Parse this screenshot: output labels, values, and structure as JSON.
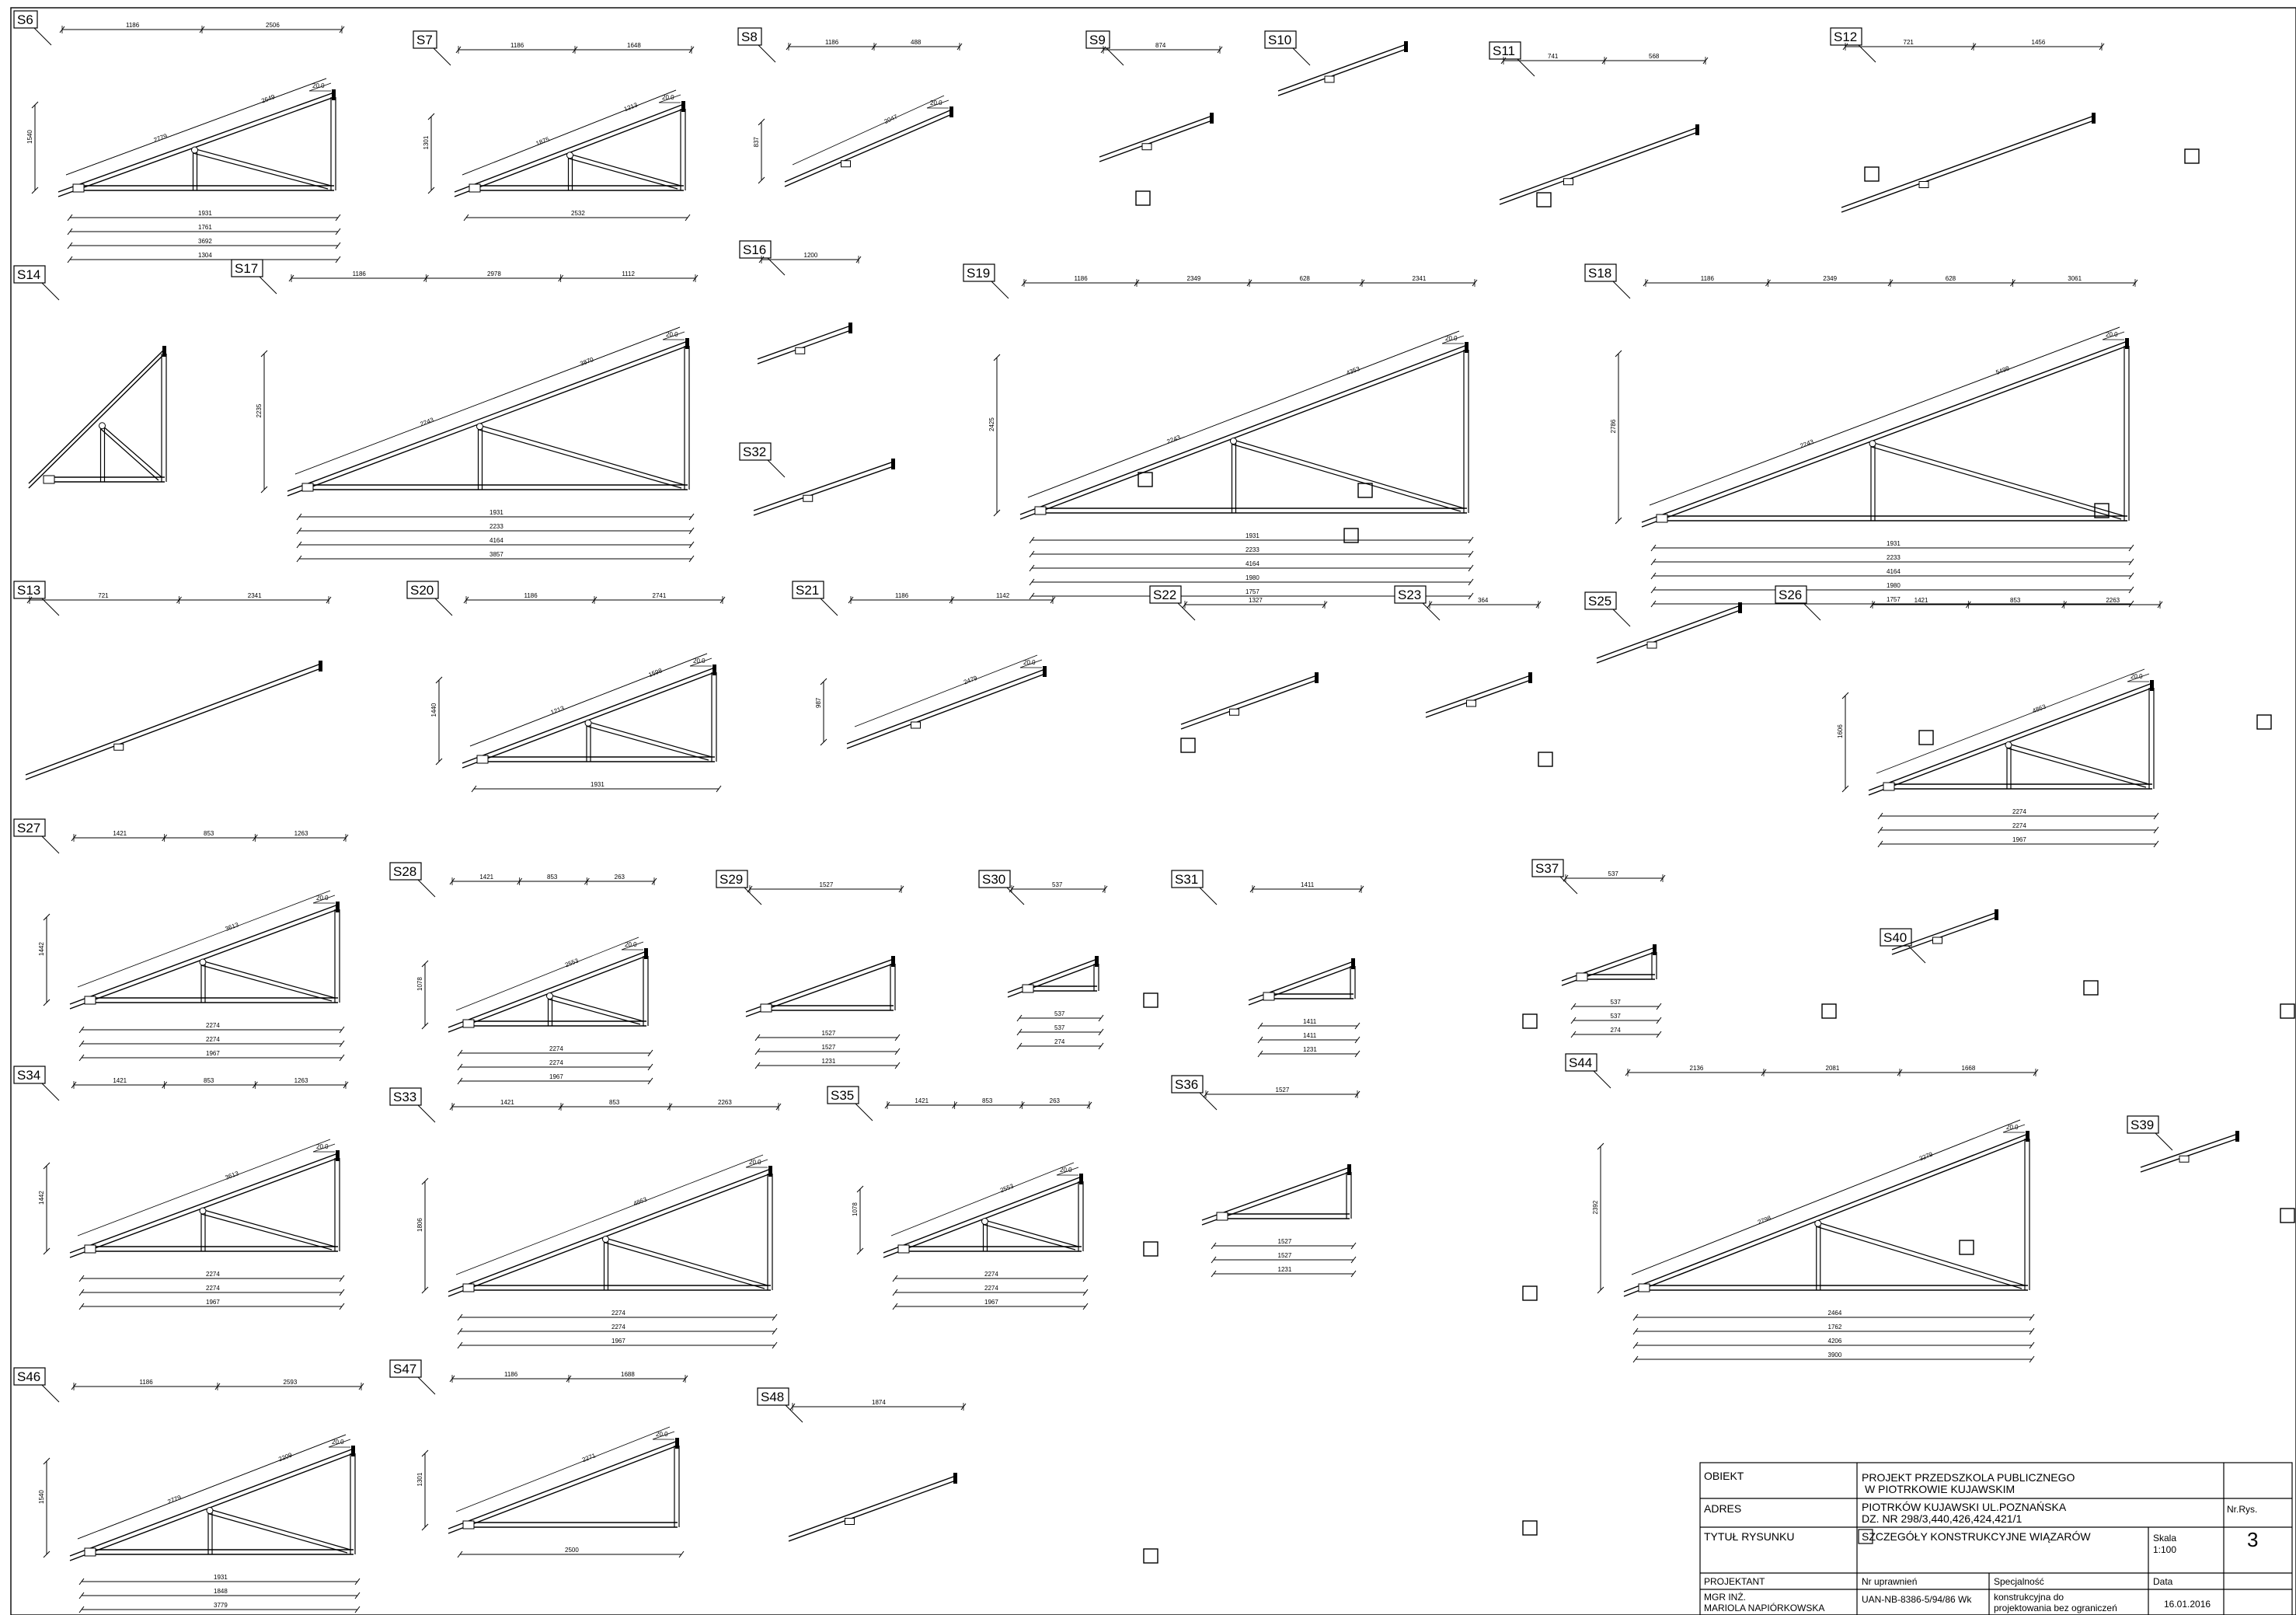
{
  "trusses": [
    {
      "label": "S6",
      "dims_top": [
        "1186",
        "2506"
      ],
      "dims_bottom": [
        "1931",
        "1761",
        "3692",
        "1304"
      ],
      "diag": [
        "2779",
        "2649"
      ],
      "angle": "20.0",
      "height": "1540"
    },
    {
      "label": "S7",
      "dims_top": [
        "1186",
        "1648"
      ],
      "dims_bottom": [
        "2532"
      ],
      "diag": [
        "1875",
        "1213"
      ],
      "angle": "20.0",
      "height": "1301"
    },
    {
      "label": "S8",
      "dims_top": [
        "1186",
        "488"
      ],
      "dims_bottom": [],
      "diag": [
        "2047"
      ],
      "angle": "20.0",
      "height": "837"
    },
    {
      "label": "S9",
      "dims_top": [
        "874"
      ],
      "dims_bottom": [],
      "diag": [],
      "angle": "",
      "height": ""
    },
    {
      "label": "S10",
      "dims_top": [],
      "dims_bottom": [],
      "diag": [],
      "angle": "",
      "height": ""
    },
    {
      "label": "S11",
      "dims_top": [
        "741",
        "568"
      ],
      "dims_bottom": [],
      "diag": [],
      "angle": "",
      "height": ""
    },
    {
      "label": "S12",
      "dims_top": [
        "721",
        "1456"
      ],
      "dims_bottom": [],
      "diag": [],
      "angle": "",
      "height": ""
    },
    {
      "label": "S14",
      "dims_top": [],
      "dims_bottom": [],
      "diag": [],
      "angle": "",
      "height": ""
    },
    {
      "label": "S17",
      "dims_top": [
        "1186",
        "2978",
        "1112"
      ],
      "dims_bottom": [
        "1931",
        "2233",
        "4164",
        "3857"
      ],
      "diag": [
        "2243",
        "3870"
      ],
      "angle": "20.0",
      "height": "2235"
    },
    {
      "label": "S16",
      "dims_top": [
        "1200"
      ],
      "dims_bottom": [],
      "diag": [],
      "angle": "",
      "height": ""
    },
    {
      "label": "S32",
      "dims_top": [],
      "dims_bottom": [],
      "diag": [],
      "angle": "",
      "height": ""
    },
    {
      "label": "S19",
      "dims_top": [
        "1186",
        "2349",
        "628",
        "2341"
      ],
      "dims_bottom": [
        "1931",
        "2233",
        "4164",
        "1980",
        "1757"
      ],
      "diag": [
        "2243",
        "4353"
      ],
      "angle": "20.0",
      "height": "2425"
    },
    {
      "label": "S18",
      "dims_top": [
        "1186",
        "2349",
        "628",
        "3061"
      ],
      "dims_bottom": [
        "1931",
        "2233",
        "4164",
        "1980",
        "1757"
      ],
      "diag": [
        "2243",
        "5498"
      ],
      "angle": "20.0",
      "height": "2786"
    },
    {
      "label": "S13",
      "dims_top": [
        "721",
        "2341"
      ],
      "dims_bottom": [],
      "diag": [],
      "angle": "",
      "height": ""
    },
    {
      "label": "S20",
      "dims_top": [
        "1186",
        "2741"
      ],
      "dims_bottom": [
        "1931"
      ],
      "diag": [
        "1213",
        "1598"
      ],
      "angle": "20.0",
      "height": "1440"
    },
    {
      "label": "S21",
      "dims_top": [
        "1186",
        "1142"
      ],
      "dims_bottom": [],
      "diag": [
        "2479"
      ],
      "angle": "20.0",
      "height": "987"
    },
    {
      "label": "S22",
      "dims_top": [
        "1327"
      ],
      "dims_bottom": [],
      "diag": [],
      "angle": "",
      "height": ""
    },
    {
      "label": "S23",
      "dims_top": [
        "364"
      ],
      "dims_bottom": [],
      "diag": [],
      "angle": "",
      "height": ""
    },
    {
      "label": "S25",
      "dims_top": [],
      "dims_bottom": [],
      "diag": [],
      "angle": "",
      "height": ""
    },
    {
      "label": "S26",
      "dims_top": [
        "1421",
        "853",
        "2263"
      ],
      "dims_bottom": [
        "2274",
        "2274",
        "1967"
      ],
      "diag": [
        "4863"
      ],
      "angle": "20.0",
      "height": "1606"
    },
    {
      "label": "S27",
      "dims_top": [
        "1421",
        "853",
        "1263"
      ],
      "dims_bottom": [
        "2274",
        "2274",
        "1967"
      ],
      "diag": [
        "3613"
      ],
      "angle": "20.0",
      "height": "1442"
    },
    {
      "label": "S28",
      "dims_top": [
        "1421",
        "853",
        "263"
      ],
      "dims_bottom": [
        "2274",
        "2274",
        "1967"
      ],
      "diag": [
        "2553"
      ],
      "angle": "20.0",
      "height": "1078"
    },
    {
      "label": "S29",
      "dims_top": [
        "1527"
      ],
      "dims_bottom": [
        "1527",
        "1527",
        "1231"
      ],
      "diag": [],
      "angle": "",
      "height": ""
    },
    {
      "label": "S30",
      "dims_top": [
        "537"
      ],
      "dims_bottom": [
        "537",
        "537",
        "274"
      ],
      "diag": [],
      "angle": "",
      "height": ""
    },
    {
      "label": "S31",
      "dims_top": [
        "1411"
      ],
      "dims_bottom": [
        "1411",
        "1411",
        "1231"
      ],
      "diag": [],
      "angle": "",
      "height": ""
    },
    {
      "label": "S37",
      "dims_top": [
        "537"
      ],
      "dims_bottom": [
        "537",
        "537",
        "274"
      ],
      "diag": [],
      "angle": "",
      "height": ""
    },
    {
      "label": "S40",
      "dims_top": [],
      "dims_bottom": [],
      "diag": [],
      "angle": "",
      "height": ""
    },
    {
      "label": "S34",
      "dims_top": [
        "1421",
        "853",
        "1263"
      ],
      "dims_bottom": [
        "2274",
        "2274",
        "1967"
      ],
      "diag": [
        "3613"
      ],
      "angle": "20.0",
      "height": "1442"
    },
    {
      "label": "S33",
      "dims_top": [
        "1421",
        "853",
        "2263"
      ],
      "dims_bottom": [
        "2274",
        "2274",
        "1967"
      ],
      "diag": [
        "4863"
      ],
      "angle": "20.0",
      "height": "1806"
    },
    {
      "label": "S35",
      "dims_top": [
        "1421",
        "853",
        "263"
      ],
      "dims_bottom": [
        "2274",
        "2274",
        "1967"
      ],
      "diag": [
        "2553"
      ],
      "angle": "20.0",
      "height": "1078"
    },
    {
      "label": "S36",
      "dims_top": [
        "1527"
      ],
      "dims_bottom": [
        "1527",
        "1527",
        "1231"
      ],
      "diag": [],
      "angle": "",
      "height": ""
    },
    {
      "label": "S44",
      "dims_top": [
        "2136",
        "2081",
        "1668"
      ],
      "dims_bottom": [
        "2464",
        "1762",
        "4206",
        "3900"
      ],
      "diag": [
        "2798",
        "3279"
      ],
      "angle": "20.0",
      "height": "2392"
    },
    {
      "label": "S39",
      "dims_top": [],
      "dims_bottom": [],
      "diag": [],
      "angle": "",
      "height": ""
    },
    {
      "label": "S46",
      "dims_top": [
        "1186",
        "2593"
      ],
      "dims_bottom": [
        "1931",
        "1848",
        "3779",
        "3473"
      ],
      "diag": [
        "2779",
        "2209"
      ],
      "angle": "20.0",
      "height": "1540"
    },
    {
      "label": "S47",
      "dims_top": [
        "1186",
        "1688"
      ],
      "dims_bottom": [
        "2500"
      ],
      "diag": [
        "2271"
      ],
      "angle": "20.0",
      "height": "1301"
    },
    {
      "label": "S48",
      "dims_top": [
        "1874"
      ],
      "dims_bottom": [],
      "diag": [],
      "angle": "",
      "height": ""
    }
  ],
  "title_block": {
    "obiekt_label": "OBIEKT",
    "obiekt_line1": "PROJEKT PRZEDSZKOLA PUBLICZNEGO",
    "obiekt_line2": "W PIOTRKOWIE KUJAWSKIM",
    "adres_label": "ADRES",
    "adres_line1": "PIOTRKÓW KUJAWSKI UL.POZNAŃSKA",
    "adres_line2": "DZ. NR 298/3,440,426,424,421/1",
    "nr_rys_label": "Nr.Rys.",
    "nr_rys_value": "3",
    "tytul_label": "TYTUŁ RYSUNKU",
    "tytul_value": "SZCZEGÓŁY KONSTRUKCYJNE WIĄZARÓW",
    "skala_label": "Skala",
    "skala_value": "1:100",
    "projektant_label": "PROJEKTANT",
    "projektant_line1": "MGR INŻ.",
    "projektant_line2": "MARIOLA NAPIÓRKOWSKA",
    "uprawnien_label": "Nr uprawnień",
    "uprawnien_value": "UAN-NB-8386-5/94/86 Wk",
    "specjalnosc_label": "Specjalność",
    "specjalnosc_line1": "konstrukcyjna do",
    "specjalnosc_line2": "projektowania bez ograniczeń",
    "data_label": "Data",
    "data_value": "16.01.2016"
  }
}
